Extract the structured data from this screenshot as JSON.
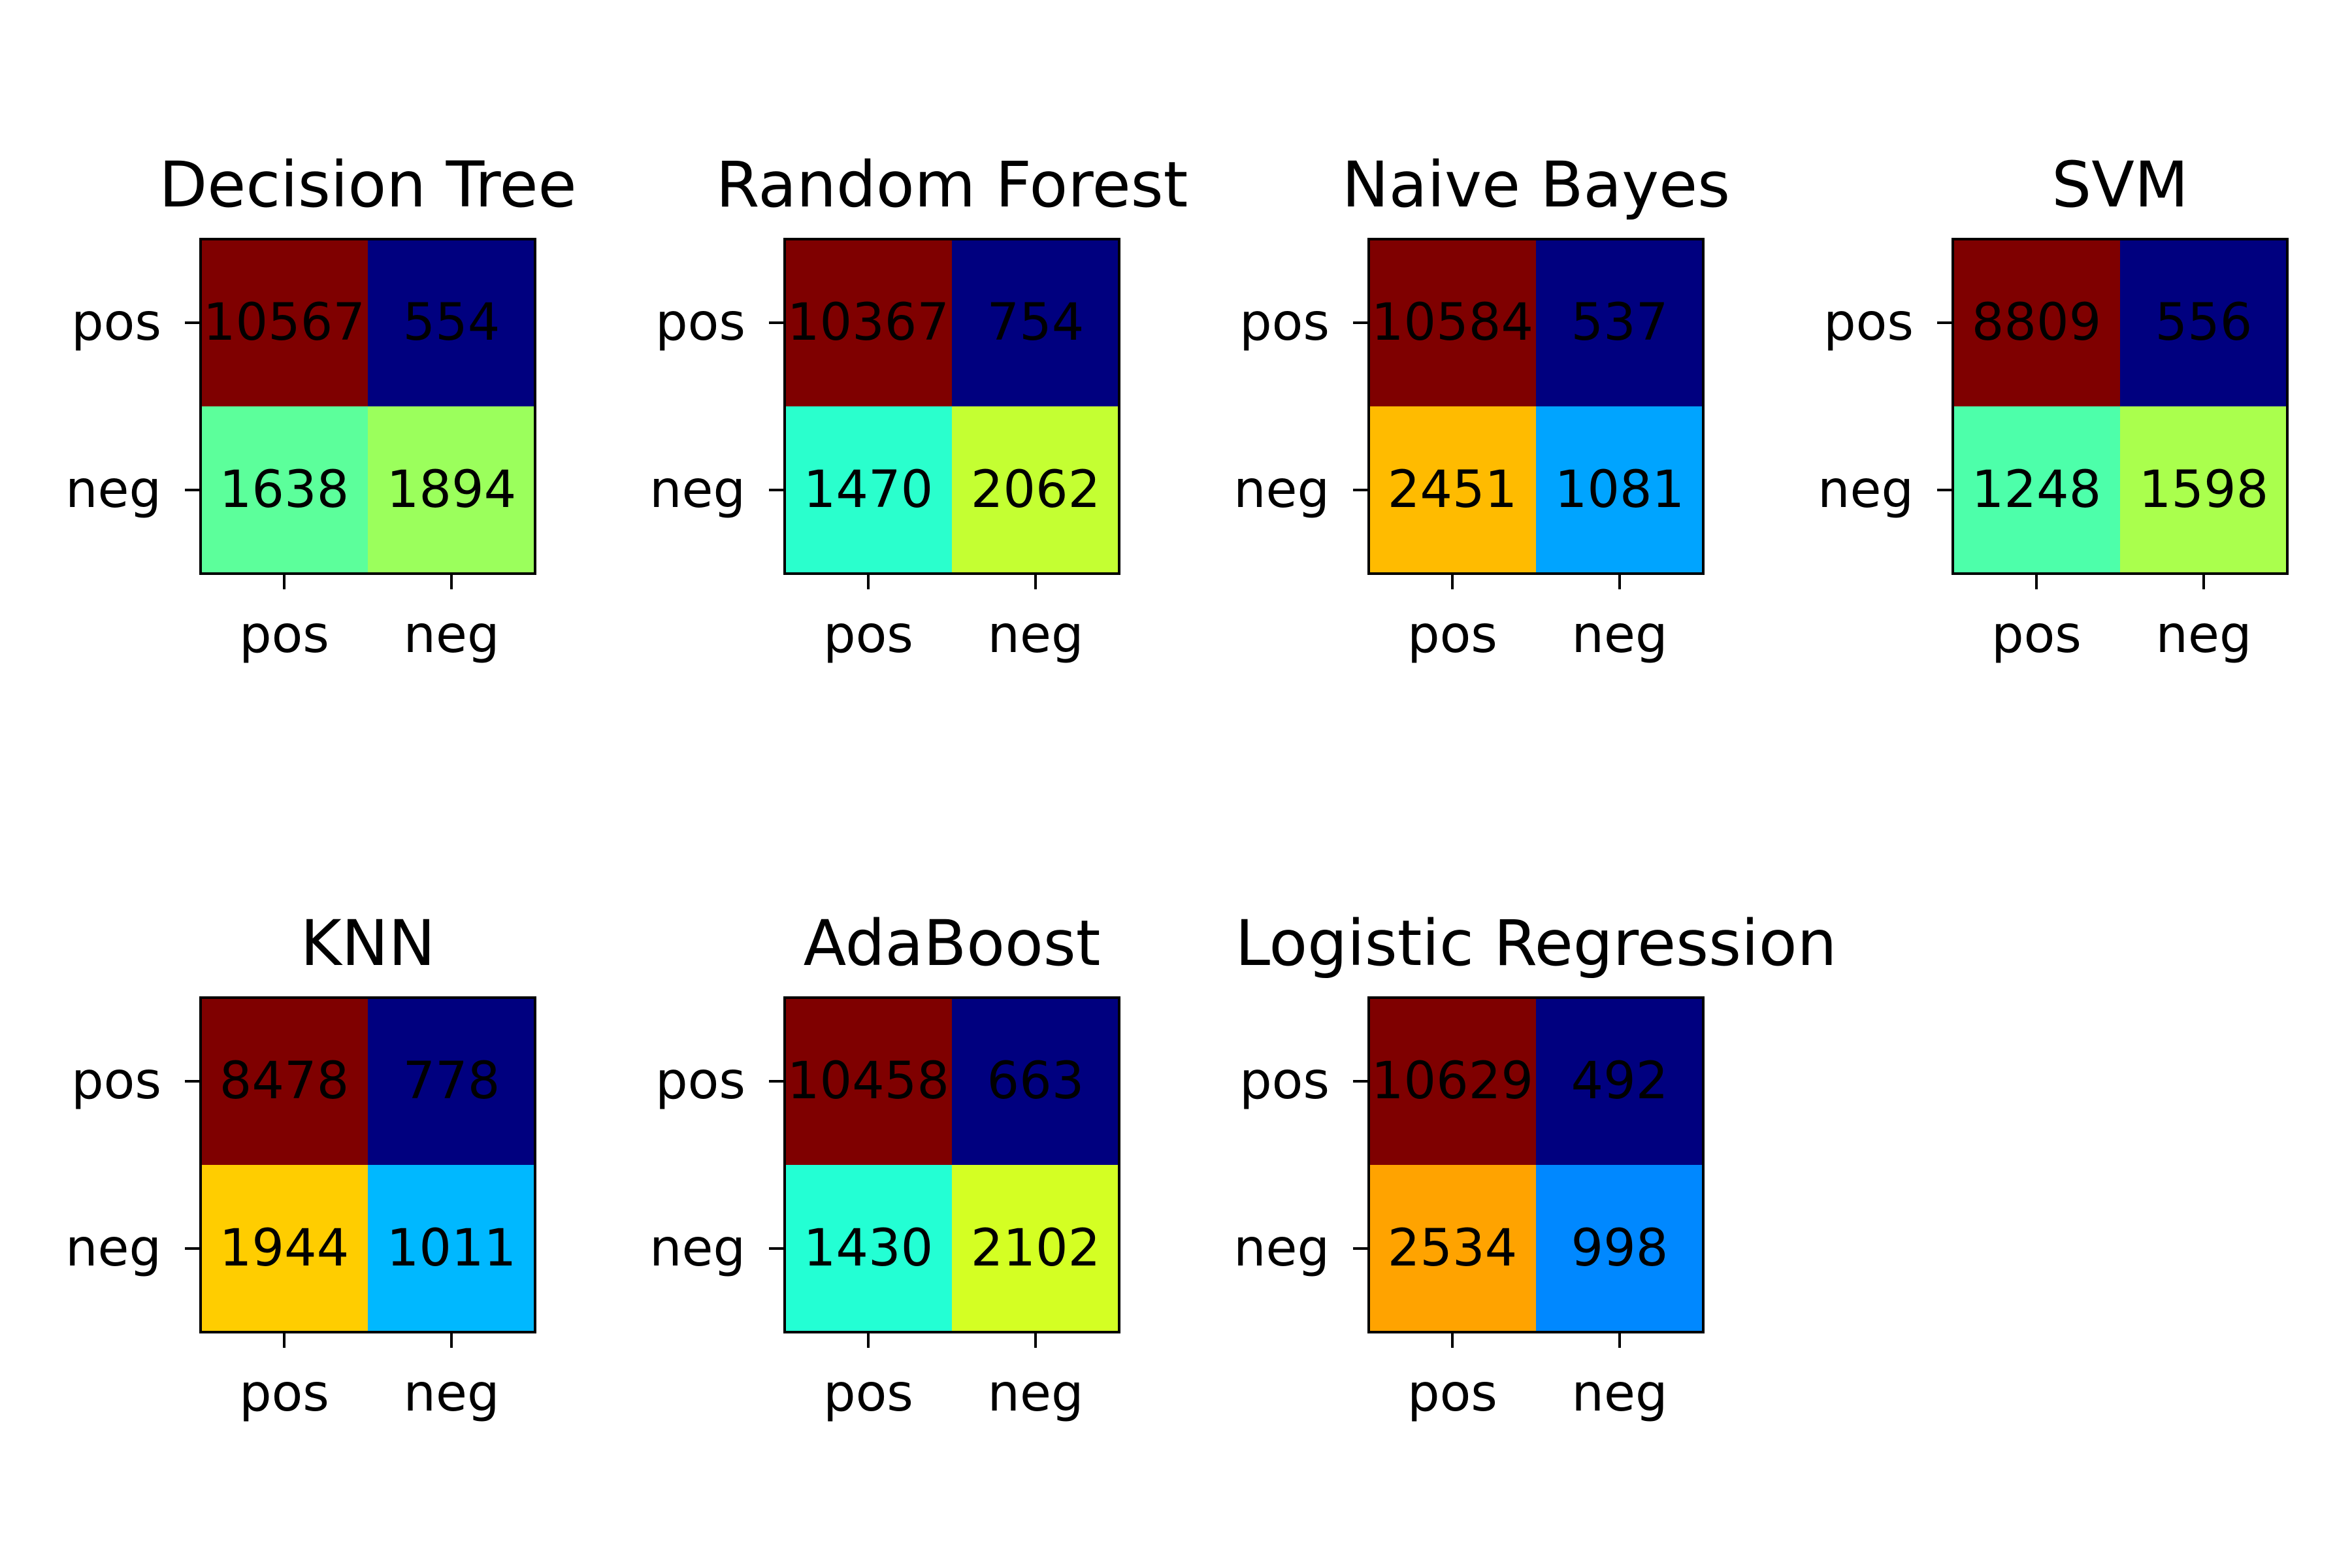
{
  "chart_data": [
    {
      "type": "heatmap",
      "title": "Decision Tree",
      "x_categories": [
        "pos",
        "neg"
      ],
      "y_categories": [
        "pos",
        "neg"
      ],
      "values": [
        [
          10567,
          554
        ],
        [
          1638,
          1894
        ]
      ],
      "colors": [
        [
          "#7f0000",
          "#00007f"
        ],
        [
          "#5cff9b",
          "#9bff5c"
        ]
      ]
    },
    {
      "type": "heatmap",
      "title": "Random Forest",
      "x_categories": [
        "pos",
        "neg"
      ],
      "y_categories": [
        "pos",
        "neg"
      ],
      "values": [
        [
          10367,
          754
        ],
        [
          1470,
          2062
        ]
      ],
      "colors": [
        [
          "#7f0000",
          "#00007f"
        ],
        [
          "#2affcd",
          "#c4ff32"
        ]
      ]
    },
    {
      "type": "heatmap",
      "title": "Naive Bayes",
      "x_categories": [
        "pos",
        "neg"
      ],
      "y_categories": [
        "pos",
        "neg"
      ],
      "values": [
        [
          10584,
          537
        ],
        [
          2451,
          1081
        ]
      ],
      "colors": [
        [
          "#7f0000",
          "#00007f"
        ],
        [
          "#ffbb00",
          "#00a4ff"
        ]
      ]
    },
    {
      "type": "heatmap",
      "title": "SVM",
      "x_categories": [
        "pos",
        "neg"
      ],
      "y_categories": [
        "pos",
        "neg"
      ],
      "values": [
        [
          8809,
          556
        ],
        [
          1248,
          1598
        ]
      ],
      "colors": [
        [
          "#7f0000",
          "#00007f"
        ],
        [
          "#4dffaa",
          "#aaff4d"
        ]
      ]
    },
    {
      "type": "heatmap",
      "title": "KNN",
      "x_categories": [
        "pos",
        "neg"
      ],
      "y_categories": [
        "pos",
        "neg"
      ],
      "values": [
        [
          8478,
          778
        ],
        [
          1944,
          1011
        ]
      ],
      "colors": [
        [
          "#7f0000",
          "#00007f"
        ],
        [
          "#ffcd00",
          "#00b8ff"
        ]
      ]
    },
    {
      "type": "heatmap",
      "title": "AdaBoost",
      "x_categories": [
        "pos",
        "neg"
      ],
      "y_categories": [
        "pos",
        "neg"
      ],
      "values": [
        [
          10458,
          663
        ],
        [
          1430,
          2102
        ]
      ],
      "colors": [
        [
          "#7f0000",
          "#00007f"
        ],
        [
          "#23ffd4",
          "#d4ff23"
        ]
      ]
    },
    {
      "type": "heatmap",
      "title": "Logistic Regression",
      "x_categories": [
        "pos",
        "neg"
      ],
      "y_categories": [
        "pos",
        "neg"
      ],
      "values": [
        [
          10629,
          492
        ],
        [
          2534,
          998
        ]
      ],
      "colors": [
        [
          "#7f0000",
          "#00007f"
        ],
        [
          "#ffa300",
          "#0088ff"
        ]
      ]
    }
  ]
}
